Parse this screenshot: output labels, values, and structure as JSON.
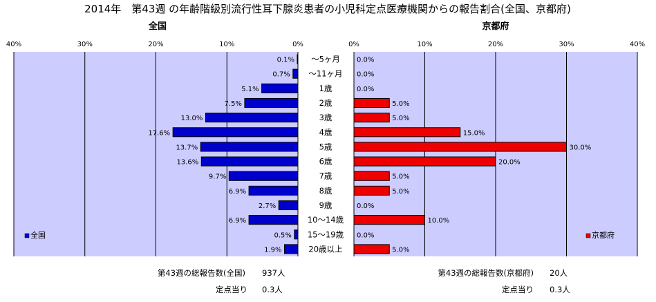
{
  "title": "2014年　第43週 の年齢階級別流行性耳下腺炎患者の小児科定点医療機関からの報告割合(全国、京都府)",
  "footnotes": {
    "national_total_label": "第43週の総報告数(全国)",
    "national_total_value": "937人",
    "national_per_label": "定点当り",
    "national_per_value": "0.3人",
    "kyoto_total_label": "第43週の総報告数(京都府)",
    "kyoto_total_value": "20人",
    "kyoto_per_label": "定点当り",
    "kyoto_per_value": "0.3人"
  },
  "colors": {
    "plot_bg": "#ccccff",
    "national_bar": "#0000cc",
    "kyoto_bar": "#ee0000",
    "gridline": "#000000"
  },
  "chart_data": [
    {
      "type": "bar",
      "orientation": "horizontal",
      "direction": "right-to-left",
      "title": "全国",
      "xlim": [
        0,
        40
      ],
      "ticks": [
        "0%",
        "10%",
        "20%",
        "30%",
        "40%"
      ],
      "tick_values": [
        0,
        10,
        20,
        30,
        40
      ],
      "grid": true,
      "legend": "bottom-left",
      "categories": [
        "～5ヶ月",
        "～11ヶ月",
        "1歳",
        "2歳",
        "3歳",
        "4歳",
        "5歳",
        "6歳",
        "7歳",
        "8歳",
        "9歳",
        "10～14歳",
        "15～19歳",
        "20歳以上"
      ],
      "series": [
        {
          "name": "全国",
          "values": [
            0.1,
            0.7,
            5.1,
            7.5,
            13.0,
            17.6,
            13.7,
            13.6,
            9.7,
            6.9,
            2.7,
            6.9,
            0.5,
            1.9
          ],
          "labels": [
            "0.1%",
            "0.7%",
            "5.1%",
            "7.5%",
            "13.0%",
            "17.6%",
            "13.7%",
            "13.6%",
            "9.7%",
            "6.9%",
            "2.7%",
            "6.9%",
            "0.5%",
            "1.9%"
          ]
        }
      ]
    },
    {
      "type": "bar",
      "orientation": "horizontal",
      "direction": "left-to-right",
      "title": "京都府",
      "xlim": [
        0,
        40
      ],
      "ticks": [
        "0%",
        "10%",
        "20%",
        "30%",
        "40%"
      ],
      "tick_values": [
        0,
        10,
        20,
        30,
        40
      ],
      "grid": true,
      "legend": "bottom-right",
      "categories": [
        "～5ヶ月",
        "～11ヶ月",
        "1歳",
        "2歳",
        "3歳",
        "4歳",
        "5歳",
        "6歳",
        "7歳",
        "8歳",
        "9歳",
        "10～14歳",
        "15～19歳",
        "20歳以上"
      ],
      "series": [
        {
          "name": "京都府",
          "values": [
            0.0,
            0.0,
            0.0,
            5.0,
            5.0,
            15.0,
            30.0,
            20.0,
            5.0,
            5.0,
            0.0,
            10.0,
            0.0,
            5.0
          ],
          "labels": [
            "0.0%",
            "0.0%",
            "0.0%",
            "5.0%",
            "5.0%",
            "15.0%",
            "30.0%",
            "20.0%",
            "5.0%",
            "5.0%",
            "0.0%",
            "10.0%",
            "0.0%",
            "5.0%"
          ]
        }
      ]
    }
  ]
}
